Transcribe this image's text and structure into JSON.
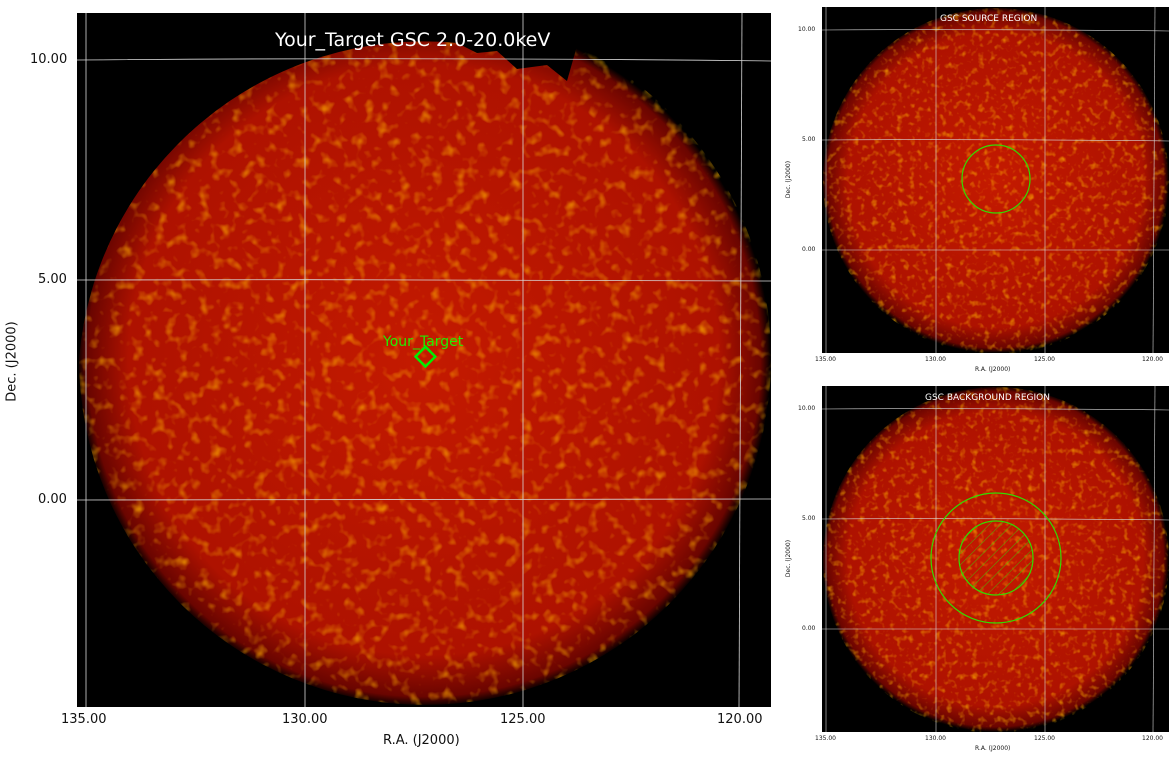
{
  "main_panel": {
    "title": "Your_Target GSC 2.0-20.0keV",
    "xlabel": "R.A. (J2000)",
    "ylabel": "Dec. (J2000)",
    "x_ticks": [
      "135.00",
      "130.00",
      "125.00",
      "120.00"
    ],
    "y_ticks": [
      "10.00",
      "5.00",
      "0.00"
    ],
    "target_label": "Your_Target",
    "marker_color": "#00ee00"
  },
  "source_panel": {
    "title": "GSC SOURCE REGION",
    "xlabel": "R.A. (J2000)",
    "ylabel": "Dec. (J2000)",
    "x_ticks": [
      "135.00",
      "130.00",
      "125.00",
      "120.00"
    ],
    "y_ticks": [
      "10.00",
      "5.00",
      "0.00"
    ]
  },
  "background_panel": {
    "title": "GSC BACKGROUND REGION",
    "xlabel": "R.A. (J2000)",
    "ylabel": "Dec. (J2000)",
    "x_ticks": [
      "135.00",
      "130.00",
      "125.00",
      "120.00"
    ],
    "y_ticks": [
      "10.00",
      "5.00",
      "0.00"
    ]
  },
  "colors": {
    "frame_background": "#000000",
    "image_fill": "#b81400",
    "grid": "#d8d8d8",
    "region": "#33dd00"
  }
}
